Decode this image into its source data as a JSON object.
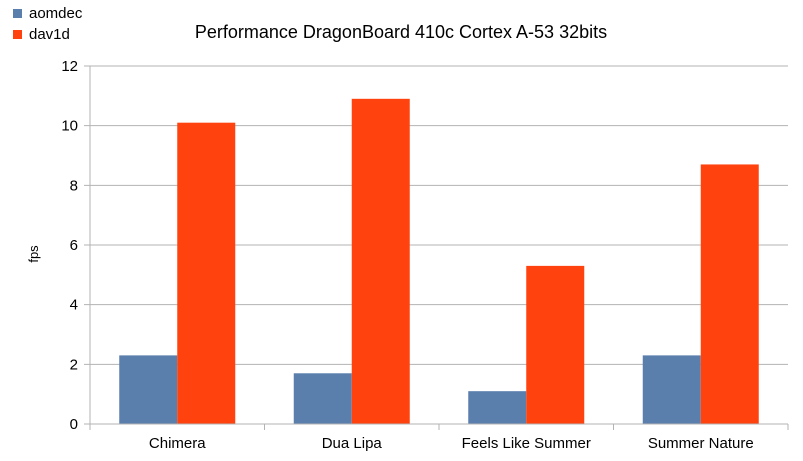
{
  "chart_data": {
    "type": "bar",
    "title": "Performance DragonBoard 410c Cortex A-53 32bits",
    "xlabel": "",
    "ylabel": "fps",
    "ylim": [
      0,
      12
    ],
    "yticks": [
      0,
      2,
      4,
      6,
      8,
      10,
      12
    ],
    "categories": [
      "Chimera",
      "Dua Lipa",
      "Feels Like Summer",
      "Summer Nature"
    ],
    "series": [
      {
        "name": "aomdec",
        "color": "#5a7fad",
        "values": [
          2.3,
          1.7,
          1.1,
          2.3
        ]
      },
      {
        "name": "dav1d",
        "color": "#ff420e",
        "values": [
          10.1,
          10.9,
          5.3,
          8.7
        ]
      }
    ],
    "grid": true,
    "legend_position": "top-left"
  }
}
